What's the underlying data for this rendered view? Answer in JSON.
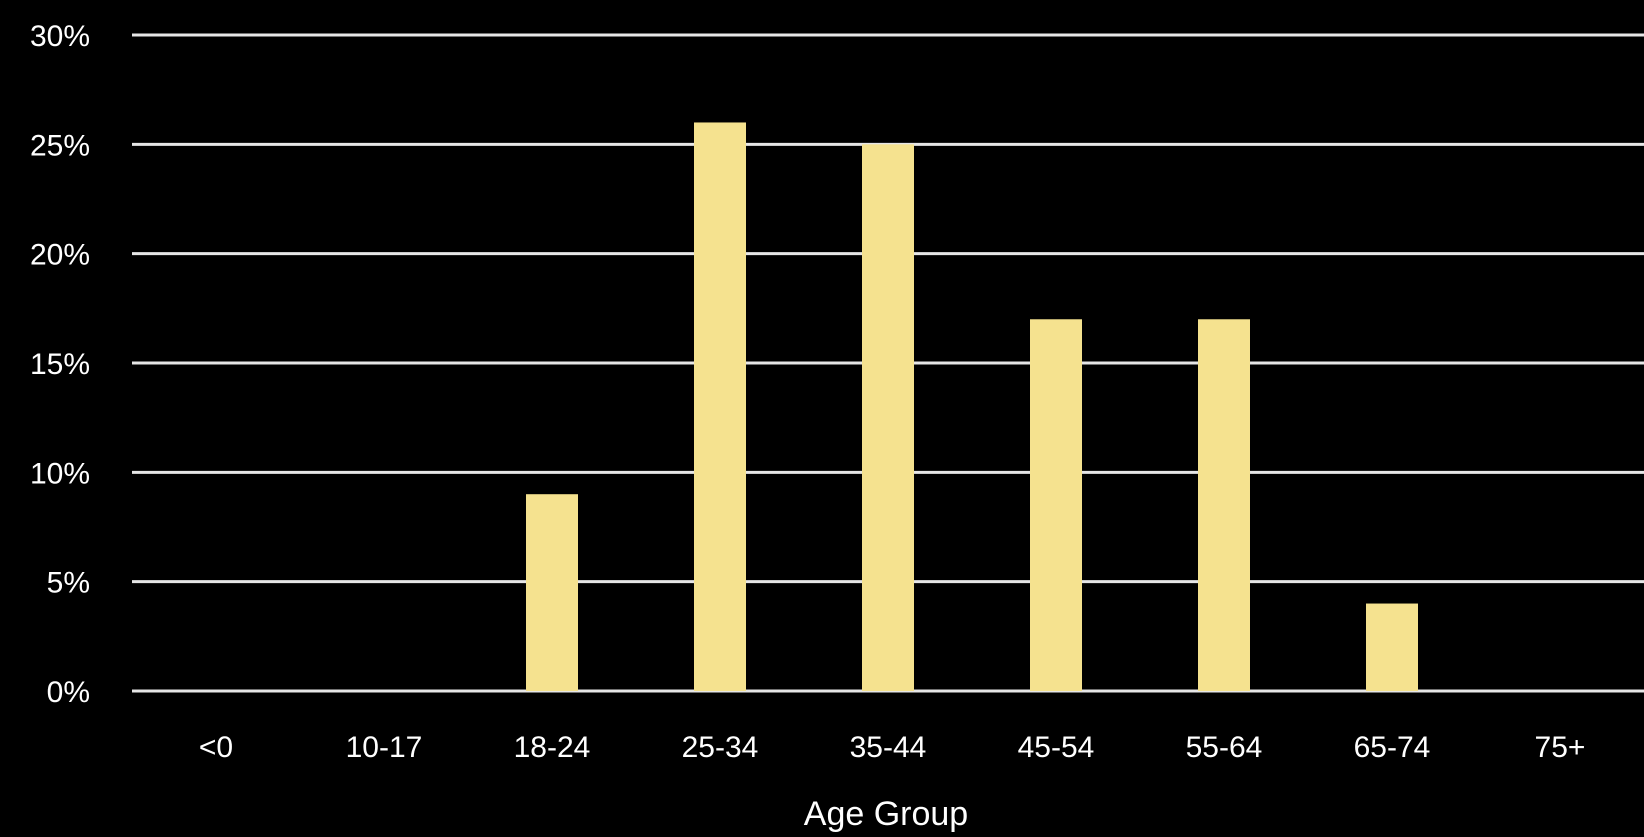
{
  "chart_data": {
    "type": "bar",
    "categories": [
      "<0",
      "10-17",
      "18-24",
      "25-34",
      "35-44",
      "45-54",
      "55-64",
      "65-74",
      "75+"
    ],
    "values": [
      0,
      0,
      9,
      26,
      25,
      17,
      17,
      4,
      0
    ],
    "xlabel": "Age Group",
    "ylabel": "",
    "ylim": [
      0,
      30
    ],
    "yticks": [
      0,
      5,
      10,
      15,
      20,
      25,
      30
    ],
    "ytick_format": "%",
    "grid": true,
    "legend": "none",
    "colors": {
      "background": "#000000",
      "bar": "#f5e28f",
      "grid": "#e6e6e6",
      "text": "#ffffff"
    }
  }
}
